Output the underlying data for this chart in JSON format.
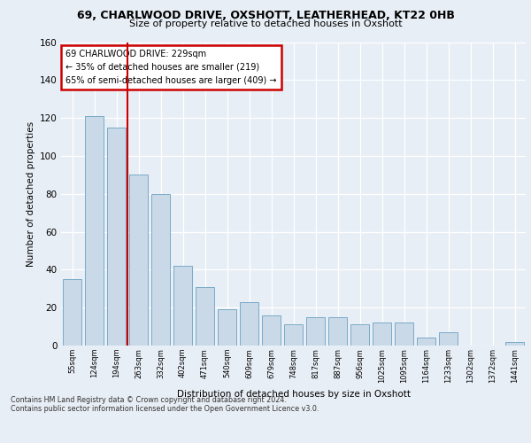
{
  "title_line1": "69, CHARLWOOD DRIVE, OXSHOTT, LEATHERHEAD, KT22 0HB",
  "title_line2": "Size of property relative to detached houses in Oxshott",
  "xlabel": "Distribution of detached houses by size in Oxshott",
  "ylabel": "Number of detached properties",
  "categories": [
    "55sqm",
    "124sqm",
    "194sqm",
    "263sqm",
    "332sqm",
    "402sqm",
    "471sqm",
    "540sqm",
    "609sqm",
    "679sqm",
    "748sqm",
    "817sqm",
    "887sqm",
    "956sqm",
    "1025sqm",
    "1095sqm",
    "1164sqm",
    "1233sqm",
    "1302sqm",
    "1372sqm",
    "1441sqm"
  ],
  "values": [
    35,
    121,
    115,
    90,
    80,
    42,
    31,
    19,
    23,
    16,
    11,
    15,
    15,
    11,
    12,
    12,
    4,
    7,
    0,
    0,
    2
  ],
  "bar_color": "#c9d9e8",
  "bar_edge_color": "#7aaac8",
  "property_line_x": 2.5,
  "annotation_text_line1": "69 CHARLWOOD DRIVE: 229sqm",
  "annotation_text_line2": "← 35% of detached houses are smaller (219)",
  "annotation_text_line3": "65% of semi-detached houses are larger (409) →",
  "annotation_box_color": "#ffffff",
  "annotation_box_edge_color": "#cc0000",
  "property_line_color": "#cc0000",
  "ylim": [
    0,
    160
  ],
  "yticks": [
    0,
    20,
    40,
    60,
    80,
    100,
    120,
    140,
    160
  ],
  "footer_line1": "Contains HM Land Registry data © Crown copyright and database right 2024.",
  "footer_line2": "Contains public sector information licensed under the Open Government Licence v3.0.",
  "background_color": "#e8eef5",
  "plot_bg_color": "#e8eef5",
  "grid_color": "#ffffff"
}
